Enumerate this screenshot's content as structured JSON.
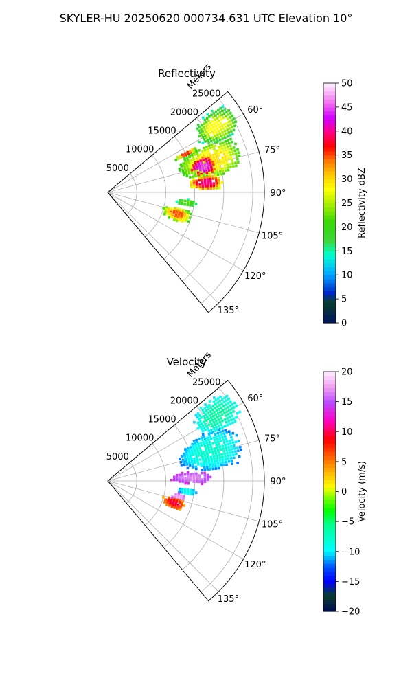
{
  "suptitle": "SKYLER-HU  20250620  000734.631 UTC Elevation 10°",
  "chart_data": [
    {
      "type": "heatmap",
      "subtype": "polar-sector (PPI)",
      "title": "Reflectivity",
      "radial_label": "Meters",
      "radial_ticks": [
        "5000",
        "10000",
        "15000",
        "20000",
        "25000"
      ],
      "angle_ticks": [
        "60°",
        "75°",
        "90°",
        "105°",
        "120°",
        "135°"
      ],
      "theta_range_deg": [
        50,
        140
      ],
      "r_range_m": [
        0,
        27000
      ],
      "grid": true,
      "colorbar": {
        "label": "Reflectivity dBZ",
        "range": [
          0,
          50
        ],
        "ticks": [
          "0",
          "5",
          "10",
          "15",
          "20",
          "25",
          "30",
          "35",
          "40",
          "45",
          "50"
        ],
        "colormap": "NWS reflectivity (dark blue → cyan → green → yellow → red → magenta → white)"
      },
      "echo_regions": [
        {
          "az": [
            52,
            66
          ],
          "r": [
            18000,
            26000
          ],
          "dbz": [
            15,
            28
          ]
        },
        {
          "az": [
            64,
            82
          ],
          "r": [
            13000,
            24000
          ],
          "dbz": [
            20,
            30
          ]
        },
        {
          "az": [
            70,
            80
          ],
          "r": [
            15000,
            19000
          ],
          "dbz": [
            35,
            45
          ]
        },
        {
          "az": [
            80,
            89
          ],
          "r": [
            14000,
            20000
          ],
          "dbz": [
            25,
            40
          ]
        },
        {
          "az": [
            62,
            66
          ],
          "r": [
            13000,
            17000
          ],
          "dbz": [
            20,
            38
          ]
        },
        {
          "az": [
            95,
            100
          ],
          "r": [
            12000,
            15500
          ],
          "dbz": [
            15,
            22
          ]
        },
        {
          "az": [
            102,
            113
          ],
          "r": [
            10000,
            15000
          ],
          "dbz": [
            20,
            35
          ]
        }
      ]
    },
    {
      "type": "heatmap",
      "subtype": "polar-sector (PPI)",
      "title": "Velocity",
      "radial_label": "Meters",
      "radial_ticks": [
        "5000",
        "10000",
        "15000",
        "20000",
        "25000"
      ],
      "angle_ticks": [
        "60°",
        "75°",
        "90°",
        "105°",
        "120°",
        "135°"
      ],
      "theta_range_deg": [
        50,
        140
      ],
      "r_range_m": [
        0,
        27000
      ],
      "grid": true,
      "colorbar": {
        "label": "Velocity (m/s)",
        "range": [
          -20,
          20
        ],
        "ticks": [
          "−20",
          "−15",
          "−10",
          "−5",
          "0",
          "5",
          "10",
          "15",
          "20"
        ],
        "colormap": "diverging (navy → blue → cyan → green → yellow → orange → red → magenta → pink)"
      },
      "echo_regions": [
        {
          "az": [
            52,
            66
          ],
          "r": [
            18000,
            26000
          ],
          "vel": [
            -10,
            -6
          ]
        },
        {
          "az": [
            64,
            84
          ],
          "r": [
            13000,
            24000
          ],
          "vel": [
            -12,
            -8
          ]
        },
        {
          "az": [
            84,
            92
          ],
          "r": [
            11000,
            18000
          ],
          "vel": [
            14,
            17
          ]
        },
        {
          "az": [
            95,
            100
          ],
          "r": [
            12000,
            15500
          ],
          "vel": [
            -12,
            -9
          ]
        },
        {
          "az": [
            100,
            106
          ],
          "r": [
            11000,
            14000
          ],
          "vel": [
            15,
            18
          ]
        },
        {
          "az": [
            104,
            113
          ],
          "r": [
            10000,
            14000
          ],
          "vel": [
            3,
            10
          ]
        }
      ]
    }
  ]
}
